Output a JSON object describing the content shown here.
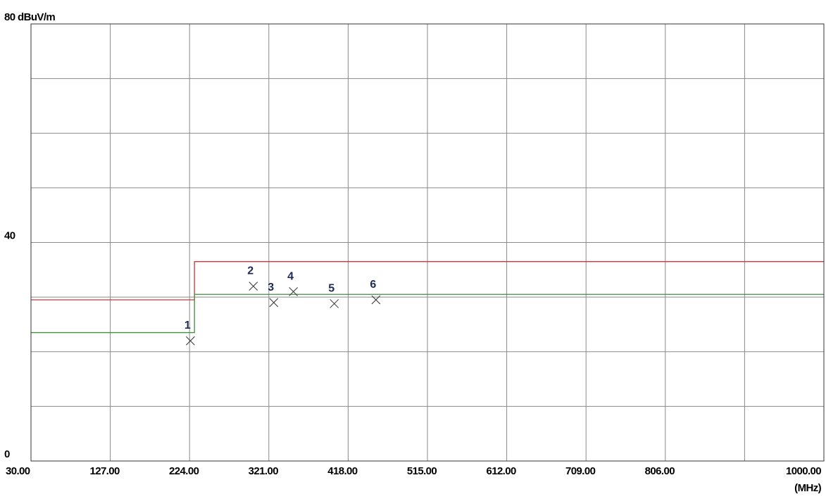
{
  "chart_data": {
    "type": "line",
    "ylabel": "dBuV/m",
    "xunit": "(MHz)",
    "xlim": [
      30,
      1000
    ],
    "ylim": [
      0,
      80
    ],
    "x_ticks": [
      "30.00",
      "127.00",
      "224.00",
      "321.00",
      "418.00",
      "515.00",
      "612.00",
      "709.00",
      "806.00",
      "1000.00"
    ],
    "y_ticks": [
      {
        "value": 80,
        "label": "80 dBuV/m"
      },
      {
        "value": 40,
        "label": "40"
      },
      {
        "value": 0,
        "label": "0"
      }
    ],
    "y_grid_values": [
      0,
      10,
      20,
      30,
      40,
      50,
      60,
      70,
      80
    ],
    "x_grid_values": [
      30,
      127,
      224,
      321,
      418,
      515,
      612,
      709,
      806,
      903,
      1000
    ],
    "grid": true,
    "series": [
      {
        "color": "#d0363c",
        "points": [
          [
            30,
            29.5
          ],
          [
            230,
            29.5
          ],
          [
            230,
            36.5
          ],
          [
            1000,
            36.5
          ]
        ]
      },
      {
        "color": "#3f8f3f",
        "points": [
          [
            30,
            23.5
          ],
          [
            230,
            23.5
          ],
          [
            230,
            30.5
          ],
          [
            1000,
            30.5
          ]
        ]
      }
    ],
    "markers": [
      {
        "label": "1",
        "x": 225,
        "y": 22.0
      },
      {
        "label": "2",
        "x": 302,
        "y": 32.0
      },
      {
        "label": "3",
        "x": 327,
        "y": 29.0
      },
      {
        "label": "4",
        "x": 351,
        "y": 31.0
      },
      {
        "label": "5",
        "x": 401,
        "y": 28.8
      },
      {
        "label": "6",
        "x": 452,
        "y": 29.5
      }
    ],
    "marker_color": "#1f2a55"
  }
}
